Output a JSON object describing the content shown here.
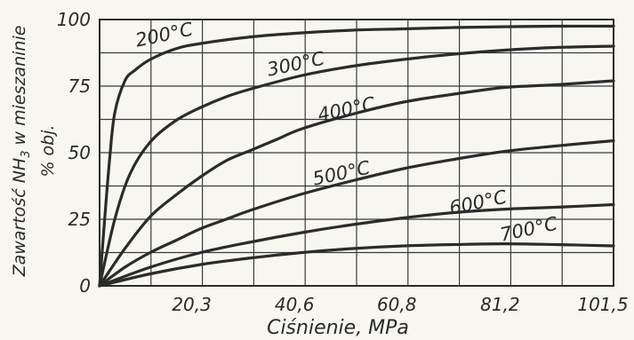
{
  "chart_data": {
    "type": "line",
    "title": "",
    "xlabel": "Ciśnienie, MPa",
    "ylabel_prefix": "Zawartość NH",
    "ylabel_sub": "3",
    "ylabel_suffix": " w mieszaninie",
    "ylabel_line2": "% obj.",
    "xlim": [
      0,
      101.5
    ],
    "ylim": [
      0,
      100
    ],
    "x_ticks": [
      {
        "value": 20.3,
        "label": "20,3"
      },
      {
        "value": 40.6,
        "label": "40,6"
      },
      {
        "value": 60.8,
        "label": "60,8"
      },
      {
        "value": 81.2,
        "label": "81,2"
      },
      {
        "value": 101.5,
        "label": "101,5"
      }
    ],
    "y_ticks": [
      {
        "value": 0,
        "label": "0"
      },
      {
        "value": 25,
        "label": "25"
      },
      {
        "value": 50,
        "label": "50"
      },
      {
        "value": 75,
        "label": "75"
      },
      {
        "value": 100,
        "label": "100"
      }
    ],
    "grid": true,
    "series": [
      {
        "name": "200°C",
        "label_at": [
          13,
          92
        ],
        "x": [
          0,
          1,
          2,
          3,
          5,
          7,
          10,
          15,
          20,
          30,
          40,
          50,
          60,
          70,
          80,
          90,
          101.5
        ],
        "y": [
          0,
          25,
          48,
          65,
          77,
          81,
          85,
          89,
          91,
          93.5,
          95,
          96,
          96.5,
          97,
          97.3,
          97.5,
          97.5
        ]
      },
      {
        "name": "300°C",
        "label_at": [
          39,
          81
        ],
        "x": [
          0,
          3,
          6,
          10,
          15,
          20,
          25,
          30,
          40,
          50,
          60,
          70,
          80,
          90,
          101.5
        ],
        "y": [
          0,
          25,
          42,
          54,
          62,
          67,
          71,
          74,
          79,
          82.5,
          85,
          87,
          88.5,
          89.5,
          90
        ]
      },
      {
        "name": "400°C",
        "label_at": [
          49,
          64
        ],
        "x": [
          0,
          5,
          10,
          15,
          20,
          25,
          30,
          35,
          40,
          50,
          60,
          70,
          80,
          90,
          101.5
        ],
        "y": [
          0,
          14,
          26,
          34,
          41,
          47,
          51,
          55,
          59,
          64.5,
          69,
          72,
          74.5,
          75.5,
          77
        ]
      },
      {
        "name": "500°C",
        "label_at": [
          48,
          40
        ],
        "x": [
          0,
          5,
          10,
          15,
          20,
          25,
          30,
          40,
          50,
          60,
          70,
          80,
          90,
          101.5
        ],
        "y": [
          0,
          7,
          12.5,
          17,
          21.5,
          25,
          28.5,
          34.5,
          39.5,
          44,
          47.5,
          50.5,
          52.5,
          54.5
        ]
      },
      {
        "name": "600°C",
        "label_at": [
          75,
          29
        ],
        "x": [
          0,
          10,
          20,
          30,
          40,
          50,
          60,
          70,
          80,
          90,
          101.5
        ],
        "y": [
          0,
          7,
          12.5,
          16.5,
          20,
          23,
          25.5,
          27.5,
          28.8,
          29.5,
          30.5
        ]
      },
      {
        "name": "700°C",
        "label_at": [
          85,
          19
        ],
        "x": [
          0,
          10,
          20,
          30,
          40,
          50,
          60,
          70,
          80,
          90,
          101.5
        ],
        "y": [
          0,
          4.5,
          8,
          10.5,
          12.5,
          14,
          15,
          15.5,
          15.8,
          15.5,
          15
        ]
      }
    ]
  }
}
